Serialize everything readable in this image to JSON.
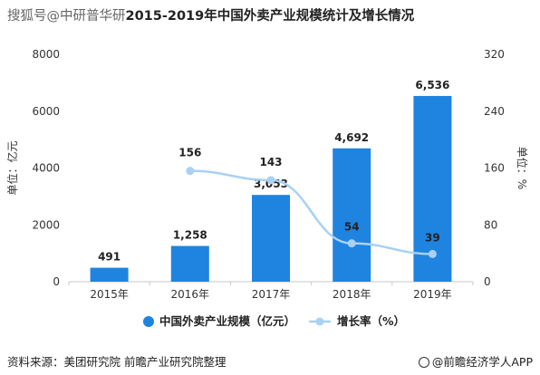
{
  "header": {
    "watermark": "搜狐号@中研普华研",
    "title_text": "2015-2019年中国外卖产业规模统计及增长情况"
  },
  "chart_data": {
    "type": "bar",
    "categories": [
      "2015年",
      "2016年",
      "2017年",
      "2018年",
      "2019年"
    ],
    "series": [
      {
        "name": "中国外卖产业规模（亿元）",
        "type": "bar",
        "axis": "left",
        "values": [
          491,
          1258,
          3053,
          4692,
          6536
        ],
        "labels": [
          "491",
          "1,258",
          "3,053",
          "4,692",
          "6,536"
        ],
        "color": "#1f83e0"
      },
      {
        "name": "增长率（%）",
        "type": "line",
        "axis": "right",
        "values": [
          null,
          156,
          143,
          54,
          39
        ],
        "labels": [
          "",
          "156",
          "143",
          "54",
          "39"
        ],
        "color": "#a9d1f4"
      }
    ],
    "ylabel": "单位：亿元",
    "y2label": "单位：%",
    "ylim": [
      0,
      8000
    ],
    "yticks": [
      "0",
      "2000",
      "4000",
      "6000",
      "8000"
    ],
    "y2lim": [
      0,
      320
    ],
    "y2ticks": [
      "0",
      "80",
      "160",
      "240",
      "320"
    ],
    "legend_position": "bottom",
    "grid": false
  },
  "footer": {
    "source": "资料来源：美团研究院 前瞻产业研究院整理",
    "logo_text": "@前瞻经济学人APP"
  }
}
